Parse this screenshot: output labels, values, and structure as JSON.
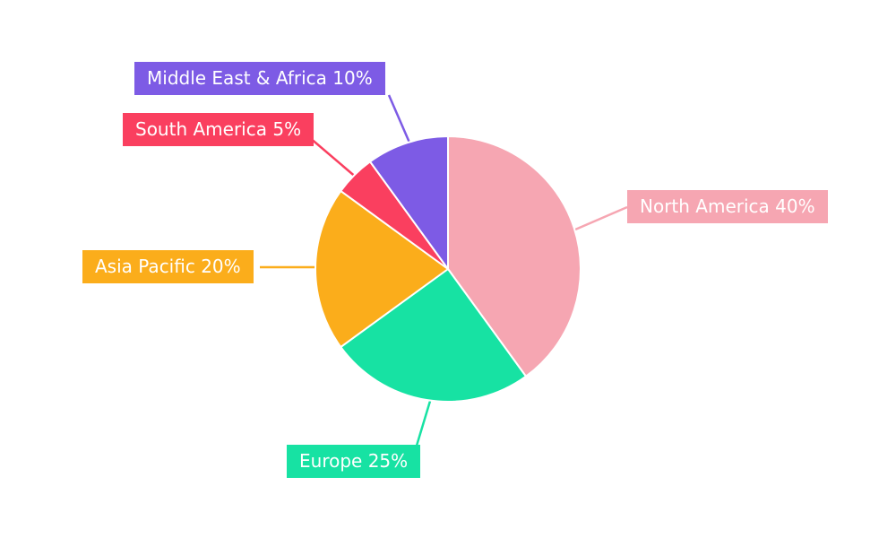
{
  "chart_data": {
    "type": "pie",
    "title": "",
    "start_angle": 0,
    "direction": "clockwise",
    "background": "#FFFFFF",
    "label_style": "callout-boxes-with-leader-lines",
    "slices": [
      {
        "label": "North America",
        "value": 40,
        "display": "North America 40%",
        "color": "#F6A6B2"
      },
      {
        "label": "Europe",
        "value": 25,
        "display": "Europe 25%",
        "color": "#17E2A3"
      },
      {
        "label": "Asia Pacific",
        "value": 20,
        "display": "Asia Pacific 20%",
        "color": "#FBAD1B"
      },
      {
        "label": "South America",
        "value": 5,
        "display": "South America 5%",
        "color": "#FA3F5F"
      },
      {
        "label": "Middle East & Africa",
        "value": 10,
        "display": "Middle East & Africa 10%",
        "color": "#7D5BE5"
      }
    ]
  }
}
